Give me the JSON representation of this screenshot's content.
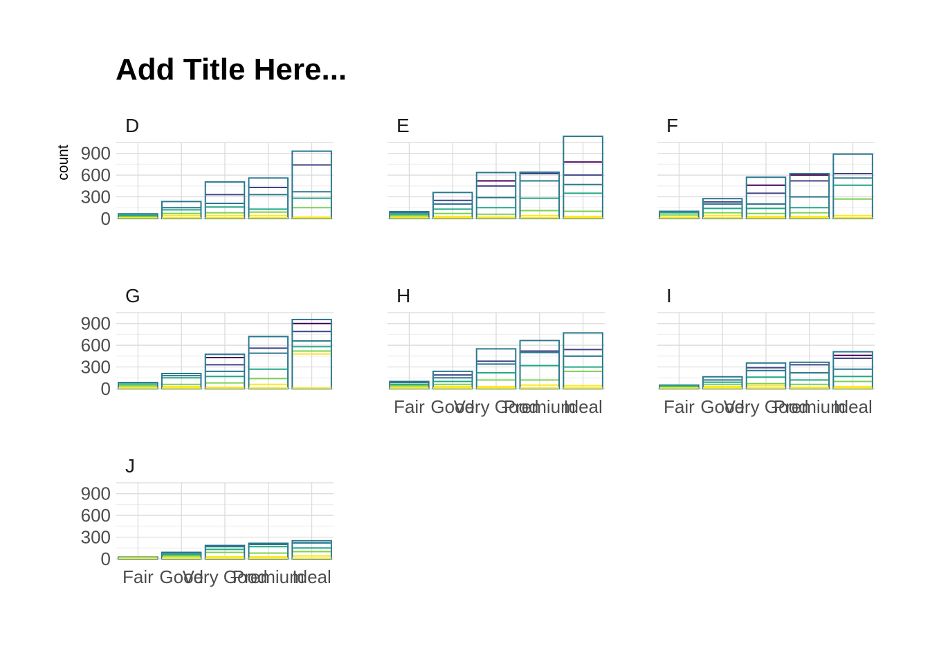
{
  "chart_data": {
    "type": "bar",
    "title": "Add Title Here...",
    "ylabel": "count",
    "xlabel": "",
    "ylim": [
      0,
      1050
    ],
    "yticks": [
      0,
      300,
      600,
      900
    ],
    "categories": [
      "Fair",
      "Good",
      "Very Good",
      "Premium",
      "Ideal"
    ],
    "grid": "on",
    "legend": "none",
    "panels": [
      {
        "label": "D",
        "totals": [
          65,
          235,
          505,
          560,
          930
        ],
        "lines": [
          [
            15,
            30,
            45
          ],
          [
            40,
            70,
            120,
            150
          ],
          [
            40,
            80,
            160,
            210,
            330
          ],
          [
            40,
            90,
            130,
            330,
            430
          ],
          [
            20,
            150,
            280,
            370,
            740
          ]
        ]
      },
      {
        "label": "E",
        "totals": [
          95,
          360,
          635,
          640,
          1135
        ],
        "lines": [
          [
            20,
            40,
            60,
            80
          ],
          [
            30,
            70,
            130,
            200,
            250
          ],
          [
            20,
            60,
            150,
            290,
            450,
            520
          ],
          [
            40,
            110,
            280,
            520,
            620
          ],
          [
            30,
            100,
            350,
            470,
            600,
            780
          ]
        ]
      },
      {
        "label": "F",
        "totals": [
          100,
          275,
          570,
          620,
          890
        ],
        "lines": [
          [
            20,
            50,
            80
          ],
          [
            40,
            80,
            140,
            200,
            230
          ],
          [
            30,
            70,
            140,
            200,
            350,
            460
          ],
          [
            30,
            80,
            150,
            300,
            520,
            600
          ],
          [
            40,
            270,
            460,
            560,
            620
          ]
        ]
      },
      {
        "label": "G",
        "totals": [
          85,
          210,
          475,
          720,
          955
        ],
        "lines": [
          [
            20,
            40,
            65
          ],
          [
            30,
            60,
            150,
            180
          ],
          [
            20,
            80,
            170,
            240,
            330,
            430
          ],
          [
            60,
            140,
            270,
            490,
            560
          ],
          [
            480,
            520,
            580,
            660,
            790,
            900
          ]
        ]
      },
      {
        "label": "H",
        "totals": [
          100,
          240,
          550,
          665,
          770
        ],
        "lines": [
          [
            20,
            40,
            60,
            85
          ],
          [
            30,
            60,
            100,
            150,
            190
          ],
          [
            30,
            120,
            220,
            340,
            380
          ],
          [
            50,
            120,
            320,
            500,
            520
          ],
          [
            40,
            240,
            300,
            450,
            540
          ]
        ]
      },
      {
        "label": "I",
        "totals": [
          50,
          165,
          355,
          365,
          510
        ],
        "lines": [
          [
            15,
            30,
            40
          ],
          [
            30,
            60,
            90,
            120
          ],
          [
            40,
            70,
            160,
            250,
            290
          ],
          [
            20,
            60,
            120,
            220,
            330
          ],
          [
            30,
            100,
            170,
            270,
            420,
            460
          ]
        ]
      },
      {
        "label": "J",
        "totals": [
          25,
          90,
          185,
          215,
          250
        ],
        "lines": [
          [
            10,
            20
          ],
          [
            20,
            40,
            60,
            80
          ],
          [
            30,
            90,
            130,
            170
          ],
          [
            30,
            80,
            170,
            200
          ],
          [
            40,
            100,
            150,
            220
          ]
        ]
      }
    ]
  },
  "colors": {
    "outline": "#2a788e",
    "palette": [
      "#440154",
      "#414487",
      "#2a788e",
      "#22a884",
      "#7ad151",
      "#fde725"
    ]
  }
}
